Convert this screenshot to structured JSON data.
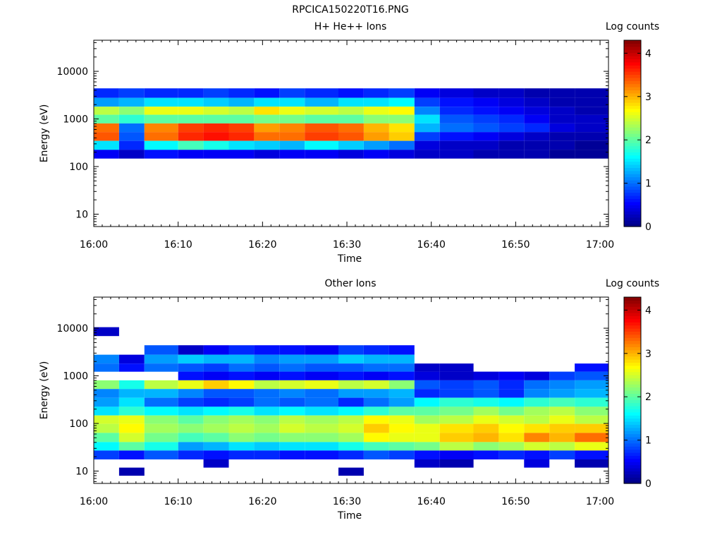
{
  "figure_title": "RPCICA150220T16.PNG",
  "chart_data": [
    {
      "type": "heatmap",
      "title": "H+ He++ Ions",
      "xlabel": "Time",
      "ylabel": "Energy (eV)",
      "colorbar_label": "Log counts",
      "y_scale": "log",
      "ylim": [
        5.5,
        45000
      ],
      "y_ticks": [
        10,
        100,
        1000,
        10000
      ],
      "y_tick_labels": [
        "10",
        "100",
        "1000",
        "10000"
      ],
      "x_range": [
        "16:00",
        "17:01"
      ],
      "x_tick_labels": [
        "16:00",
        "16:10",
        "16:20",
        "16:30",
        "16:40",
        "16:50",
        "17:00"
      ],
      "colorbar_range": [
        0,
        4.3
      ],
      "colorbar_ticks": [
        0,
        1,
        2,
        3,
        4
      ],
      "time_bins": [
        "16:00",
        "16:03",
        "16:06",
        "16:10",
        "16:13",
        "16:16",
        "16:19",
        "16:22",
        "16:25",
        "16:29",
        "16:32",
        "16:35",
        "16:38",
        "16:41",
        "16:45",
        "16:48",
        "16:51",
        "16:54",
        "16:57"
      ],
      "energy_bins": [
        30000,
        20000,
        13000,
        8500,
        5500,
        3500,
        2200,
        1500,
        1000,
        650,
        430,
        280,
        180,
        120,
        80,
        50,
        33,
        22,
        14,
        10
      ],
      "values": [
        [
          0,
          0,
          0,
          0,
          0,
          0,
          0,
          0,
          0,
          0,
          0,
          0,
          0,
          0,
          0,
          0,
          0,
          0,
          0
        ],
        [
          0,
          0,
          0,
          0,
          0,
          0,
          0,
          0,
          0,
          0,
          0,
          0,
          0,
          0,
          0,
          0,
          0,
          0,
          0
        ],
        [
          0,
          0,
          0,
          0,
          0,
          0,
          0,
          0,
          0,
          0,
          0,
          0,
          0,
          0,
          0,
          0,
          0,
          0,
          0
        ],
        [
          0,
          0,
          0,
          0,
          0,
          0,
          0,
          0,
          0,
          0,
          0,
          0,
          0,
          0,
          0,
          0,
          0,
          0,
          0
        ],
        [
          0,
          0,
          0,
          0,
          0,
          0,
          0,
          0,
          0,
          0,
          0,
          0,
          0,
          0,
          0,
          0,
          0,
          0,
          0
        ],
        [
          0.7,
          0.8,
          0.7,
          0.7,
          0.8,
          0.7,
          0.6,
          0.8,
          0.7,
          0.6,
          0.7,
          0.8,
          0.5,
          0.4,
          0.3,
          0.3,
          0.2,
          0.2,
          0.2
        ],
        [
          1.2,
          1.3,
          1.5,
          1.5,
          1.4,
          1.3,
          1.5,
          1.5,
          1.3,
          1.5,
          1.5,
          1.6,
          0.8,
          0.6,
          0.5,
          0.4,
          0.3,
          0.2,
          0.2
        ],
        [
          2.4,
          2.2,
          2.6,
          2.6,
          2.5,
          2.4,
          2.8,
          2.6,
          2.5,
          2.4,
          2.6,
          2.7,
          1.1,
          0.7,
          0.6,
          0.5,
          0.4,
          0.3,
          0.2
        ],
        [
          2.0,
          1.8,
          2.0,
          2.0,
          2.0,
          2.0,
          2.1,
          2.1,
          2.0,
          2.0,
          2.2,
          2.2,
          1.5,
          0.9,
          0.8,
          0.7,
          0.5,
          0.3,
          0.3
        ],
        [
          3.3,
          1.0,
          3.2,
          3.5,
          3.6,
          3.5,
          3.1,
          3.2,
          3.4,
          3.3,
          3.0,
          2.8,
          1.3,
          1.0,
          0.9,
          0.8,
          0.7,
          0.4,
          0.3
        ],
        [
          3.4,
          0.9,
          3.3,
          3.6,
          3.7,
          3.6,
          3.3,
          3.3,
          3.5,
          3.4,
          3.1,
          2.9,
          0.8,
          0.6,
          0.5,
          0.4,
          0.3,
          0.2,
          0.2
        ],
        [
          1.5,
          0.7,
          1.6,
          1.9,
          1.7,
          1.5,
          1.4,
          1.3,
          1.6,
          1.4,
          1.2,
          1.0,
          0.4,
          0.3,
          0.3,
          0.2,
          0.2,
          0.2,
          0.1
        ],
        [
          0.5,
          0.3,
          0.6,
          0.5,
          0.5,
          0.5,
          0.4,
          0.5,
          0.5,
          0.4,
          0.5,
          0.4,
          0.3,
          0.3,
          0.2,
          0.2,
          0.2,
          0.1,
          0.1
        ],
        [
          0,
          0,
          0,
          0,
          0,
          0,
          0,
          0,
          0,
          0,
          0,
          0,
          0,
          0,
          0,
          0,
          0,
          0,
          0
        ],
        [
          0,
          0,
          0,
          0,
          0,
          0,
          0,
          0,
          0,
          0,
          0,
          0,
          0,
          0,
          0,
          0,
          0,
          0,
          0
        ],
        [
          0,
          0,
          0,
          0,
          0,
          0,
          0,
          0,
          0,
          0,
          0,
          0,
          0,
          0,
          0,
          0,
          0,
          0,
          0
        ],
        [
          0,
          0,
          0,
          0,
          0,
          0,
          0,
          0,
          0,
          0,
          0,
          0,
          0,
          0,
          0,
          0,
          0,
          0,
          0
        ],
        [
          0,
          0,
          0,
          0,
          0,
          0,
          0,
          0,
          0,
          0,
          0,
          0,
          0,
          0,
          0,
          0,
          0,
          0,
          0
        ],
        [
          0,
          0,
          0,
          0,
          0,
          0,
          0,
          0,
          0,
          0,
          0,
          0,
          0,
          0,
          0,
          0,
          0,
          0,
          0
        ],
        [
          0,
          0,
          0,
          0,
          0,
          0,
          0,
          0,
          0,
          0,
          0,
          0,
          0,
          0,
          0,
          0,
          0,
          0,
          0
        ]
      ]
    },
    {
      "type": "heatmap",
      "title": "Other Ions",
      "xlabel": "Time",
      "ylabel": "Energy (eV)",
      "colorbar_label": "Log counts",
      "y_scale": "log",
      "ylim": [
        5.5,
        45000
      ],
      "y_ticks": [
        10,
        100,
        1000,
        10000
      ],
      "y_tick_labels": [
        "10",
        "100",
        "1000",
        "10000"
      ],
      "x_range": [
        "16:00",
        "17:01"
      ],
      "x_tick_labels": [
        "16:00",
        "16:10",
        "16:20",
        "16:30",
        "16:40",
        "16:50",
        "17:00"
      ],
      "colorbar_range": [
        0,
        4.3
      ],
      "colorbar_ticks": [
        0,
        1,
        2,
        3,
        4
      ],
      "time_bins": [
        "16:00",
        "16:03",
        "16:06",
        "16:10",
        "16:13",
        "16:16",
        "16:19",
        "16:22",
        "16:25",
        "16:29",
        "16:32",
        "16:35",
        "16:38",
        "16:41",
        "16:45",
        "16:48",
        "16:51",
        "16:54",
        "16:57"
      ],
      "energy_bins": [
        30000,
        20000,
        13000,
        8500,
        5500,
        3500,
        2200,
        1500,
        1000,
        650,
        430,
        280,
        180,
        120,
        80,
        50,
        33,
        22,
        14,
        10
      ],
      "values": [
        [
          0,
          0,
          0,
          0,
          0,
          0,
          0,
          0,
          0,
          0,
          0,
          0,
          0,
          0,
          0,
          0,
          0,
          0,
          0
        ],
        [
          0,
          0,
          0,
          0,
          0,
          0,
          0,
          0,
          0,
          0,
          0,
          0,
          0,
          0,
          0,
          0,
          0,
          0,
          0
        ],
        [
          0,
          0,
          0,
          0,
          0,
          0,
          0,
          0,
          0,
          0,
          0,
          0,
          0,
          0,
          0,
          0,
          0,
          0,
          0
        ],
        [
          0.3,
          0,
          0,
          0,
          0,
          0,
          0,
          0,
          0,
          0,
          0,
          0,
          0,
          0,
          0,
          0,
          0,
          0,
          0
        ],
        [
          0,
          0,
          0,
          0,
          0,
          0,
          0,
          0,
          0,
          0,
          0,
          0,
          0,
          0,
          0,
          0,
          0,
          0,
          0
        ],
        [
          0,
          0,
          0.9,
          0.3,
          0.5,
          0.7,
          0.6,
          0.6,
          0.5,
          0.8,
          0.7,
          0.6,
          0,
          0,
          0,
          0,
          0,
          0,
          0
        ],
        [
          1.1,
          0.4,
          1.2,
          1.4,
          1.3,
          1.3,
          1.1,
          1.2,
          1.2,
          1.4,
          1.3,
          1.3,
          0,
          0,
          0,
          0,
          0,
          0,
          0
        ],
        [
          1.0,
          0.6,
          1.0,
          0.9,
          0.8,
          1.0,
          0.9,
          1.0,
          0.9,
          0.9,
          1.0,
          1.0,
          0.3,
          0.3,
          0,
          0,
          0,
          0,
          0.6
        ],
        [
          0,
          0,
          0,
          0.6,
          0.5,
          0.6,
          0.5,
          0.6,
          0.5,
          0.6,
          0.5,
          0.6,
          0.4,
          0.3,
          0.4,
          0.5,
          0.4,
          0.8,
          0.9
        ],
        [
          2.2,
          1.7,
          2.4,
          2.6,
          2.9,
          2.7,
          2.4,
          2.5,
          2.6,
          2.4,
          2.5,
          2.2,
          0.9,
          0.8,
          0.9,
          0.7,
          1.0,
          1.1,
          1.2
        ],
        [
          1.1,
          1.3,
          1.3,
          1.1,
          0.9,
          0.9,
          1.0,
          1.1,
          1.0,
          1.2,
          1.2,
          1.3,
          0.7,
          0.8,
          0.9,
          0.7,
          1.1,
          1.2,
          1.3
        ],
        [
          1.2,
          1.5,
          1.0,
          0.8,
          0.7,
          0.8,
          1.0,
          0.9,
          1.0,
          0.7,
          1.0,
          1.2,
          1.6,
          1.8,
          1.7,
          1.6,
          1.8,
          1.9,
          1.8
        ],
        [
          1.5,
          1.8,
          1.6,
          1.5,
          1.6,
          1.7,
          1.5,
          1.6,
          1.5,
          1.6,
          1.8,
          2.0,
          2.0,
          2.1,
          2.3,
          2.1,
          2.3,
          2.4,
          2.2
        ],
        [
          2.5,
          2.6,
          2.2,
          2.0,
          2.2,
          2.3,
          2.2,
          2.4,
          2.3,
          2.4,
          2.7,
          2.6,
          2.3,
          2.4,
          2.6,
          2.5,
          2.4,
          2.6,
          2.4
        ],
        [
          2.4,
          2.7,
          2.3,
          2.2,
          2.3,
          2.4,
          2.3,
          2.5,
          2.4,
          2.5,
          2.9,
          2.7,
          2.6,
          2.8,
          2.9,
          2.7,
          2.8,
          2.9,
          2.9
        ],
        [
          2.0,
          2.5,
          2.1,
          1.9,
          2.0,
          2.2,
          2.1,
          2.2,
          2.2,
          2.3,
          2.7,
          2.6,
          2.6,
          2.9,
          3.0,
          2.8,
          3.2,
          3.0,
          3.3
        ],
        [
          1.6,
          2.0,
          1.7,
          1.2,
          1.3,
          1.5,
          1.4,
          1.5,
          1.5,
          1.7,
          1.9,
          2.0,
          2.1,
          2.4,
          2.2,
          2.3,
          2.5,
          2.4,
          2.6
        ],
        [
          0.8,
          0.6,
          0.9,
          0.7,
          0.6,
          0.7,
          0.7,
          0.6,
          0.6,
          0.7,
          0.9,
          0.8,
          0.6,
          0.5,
          0.6,
          0.7,
          0.6,
          0.8,
          0.6
        ],
        [
          0,
          0,
          0,
          0,
          0.3,
          0,
          0,
          0,
          0,
          0,
          0,
          0,
          0.3,
          0.2,
          0,
          0,
          0.4,
          0,
          0.2
        ],
        [
          0,
          0.2,
          0,
          0,
          0,
          0,
          0,
          0,
          0,
          0.2,
          0,
          0,
          0,
          0,
          0,
          0,
          0,
          0,
          0
        ]
      ]
    }
  ]
}
